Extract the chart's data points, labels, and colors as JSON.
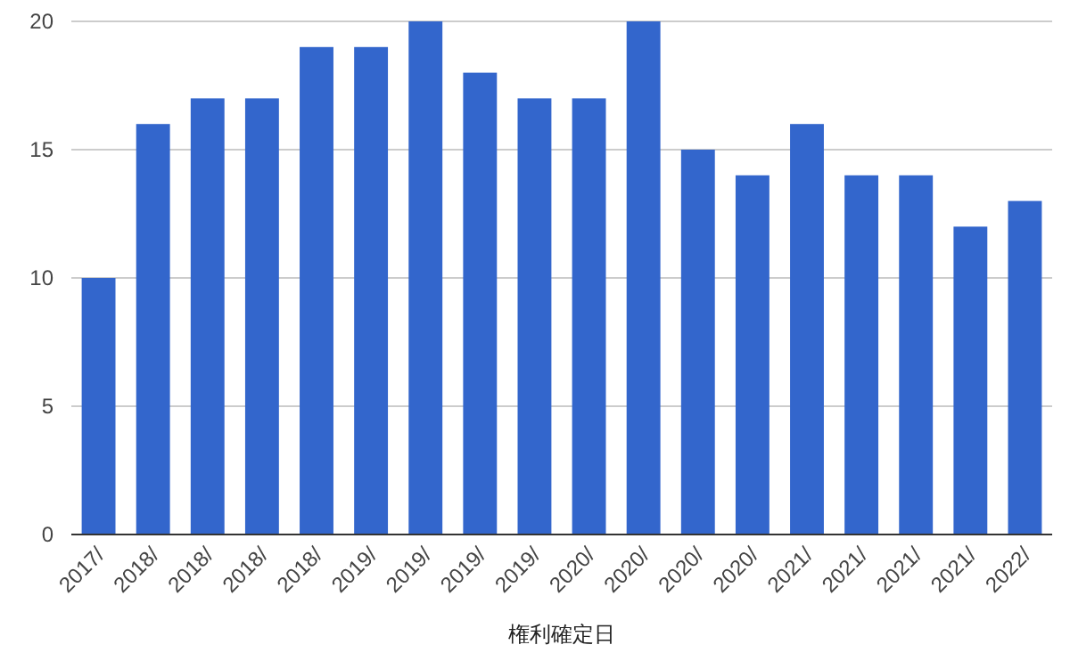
{
  "chart_data": {
    "type": "bar",
    "xlabel": "権利確定日",
    "categories": [
      "2017/",
      "2018/",
      "2018/",
      "2018/",
      "2018/",
      "2019/",
      "2019/",
      "2019/",
      "2019/",
      "2020/",
      "2020/",
      "2020/",
      "2020/",
      "2021/",
      "2021/",
      "2021/",
      "2021/",
      "2022/"
    ],
    "values": [
      10,
      16,
      17,
      17,
      19,
      19,
      20,
      18,
      17,
      17,
      20,
      15,
      14,
      16,
      14,
      14,
      12,
      13
    ],
    "color": "#3366cc",
    "ylim": [
      0,
      20
    ],
    "yticks": [
      0,
      5,
      10,
      15,
      20
    ],
    "grid": "y"
  }
}
